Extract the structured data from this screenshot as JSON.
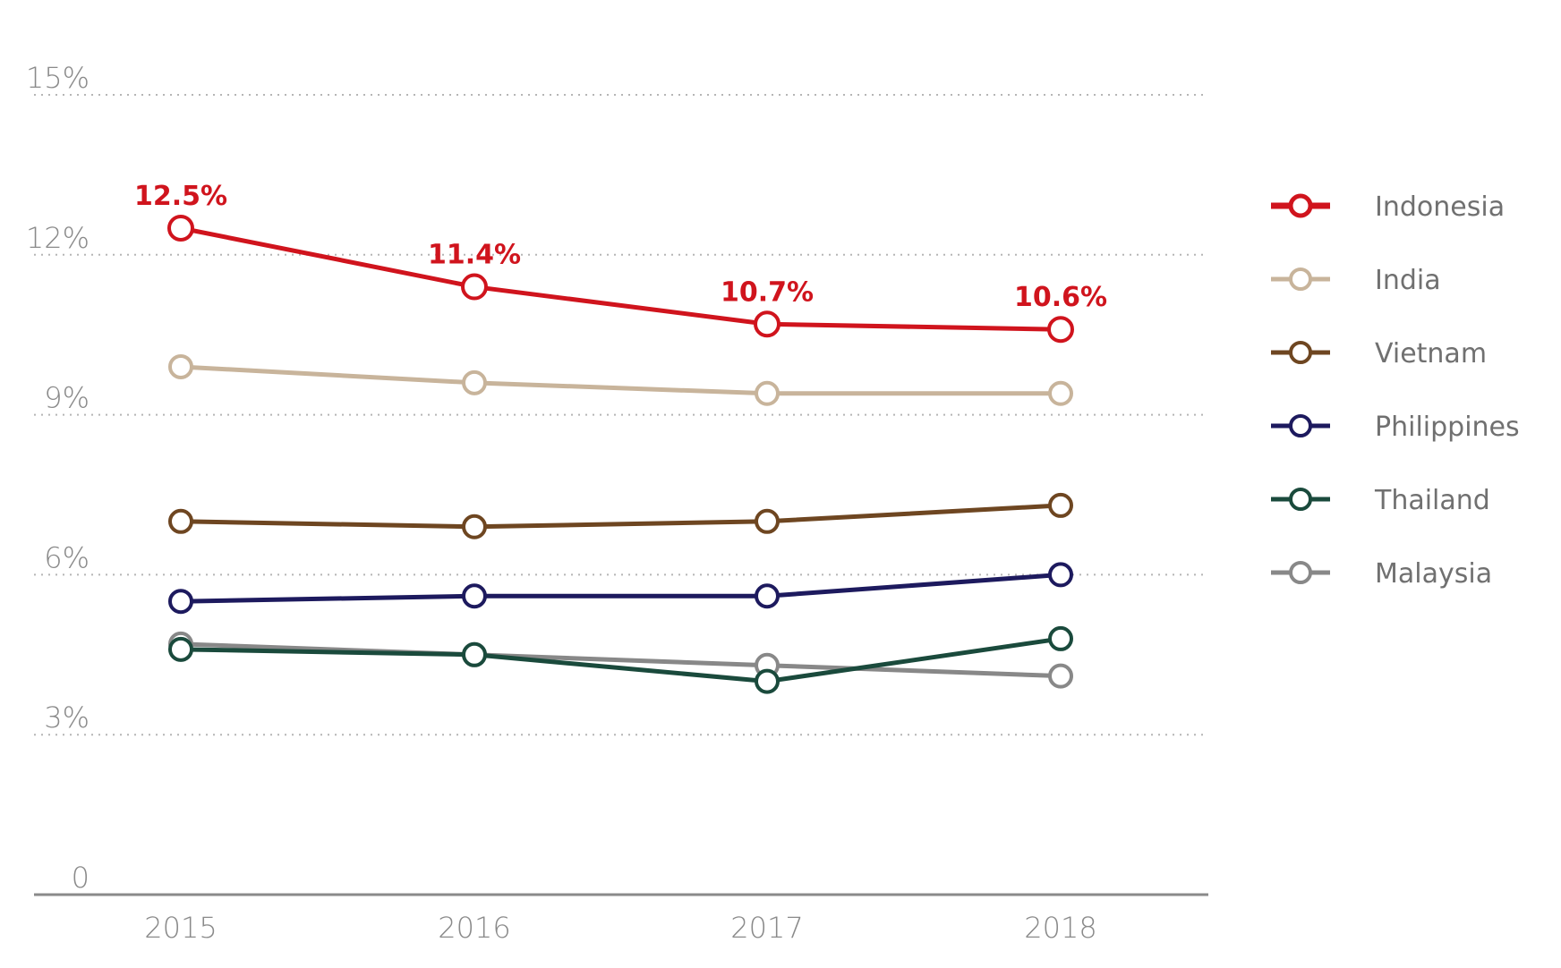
{
  "chart_data": {
    "type": "line",
    "title": "",
    "xlabel": "",
    "ylabel": "",
    "x": [
      "2015",
      "2016",
      "2017",
      "2018"
    ],
    "ylim": [
      0,
      15
    ],
    "yticks": [
      0,
      3,
      6,
      9,
      12,
      15
    ],
    "ytick_labels": [
      "0",
      "3%",
      "6%",
      "9%",
      "12%",
      "15%"
    ],
    "grid": true,
    "legend_position": "right",
    "series": [
      {
        "name": "Indonesia",
        "color": "#d0141d",
        "values": [
          12.5,
          11.4,
          10.7,
          10.6
        ],
        "data_labels": [
          "12.5%",
          "11.4%",
          "10.7%",
          "10.6%"
        ],
        "highlight": true
      },
      {
        "name": "India",
        "color": "#c8b49b",
        "values": [
          9.9,
          9.6,
          9.4,
          9.4
        ]
      },
      {
        "name": "Vietnam",
        "color": "#6e4621",
        "values": [
          7.0,
          6.9,
          7.0,
          7.3
        ]
      },
      {
        "name": "Philippines",
        "color": "#1d1a5e",
        "values": [
          5.5,
          5.6,
          5.6,
          6.0
        ]
      },
      {
        "name": "Thailand",
        "color": "#1a4a3c",
        "values": [
          4.6,
          4.5,
          4.0,
          4.8
        ]
      },
      {
        "name": "Malaysia",
        "color": "#888888",
        "values": [
          4.7,
          4.5,
          4.3,
          4.1
        ]
      }
    ]
  }
}
